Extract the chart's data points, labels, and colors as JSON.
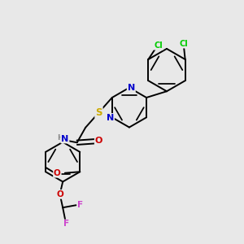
{
  "bg_color": "#e8e8e8",
  "atom_colors": {
    "C": "#000000",
    "N": "#0000cc",
    "O": "#cc0000",
    "S": "#ccaa00",
    "F": "#cc44cc",
    "Cl": "#00cc00",
    "H": "#888888"
  },
  "bond_color": "#000000",
  "bond_width": 1.4,
  "figsize": [
    3.0,
    3.0
  ],
  "dpi": 100
}
